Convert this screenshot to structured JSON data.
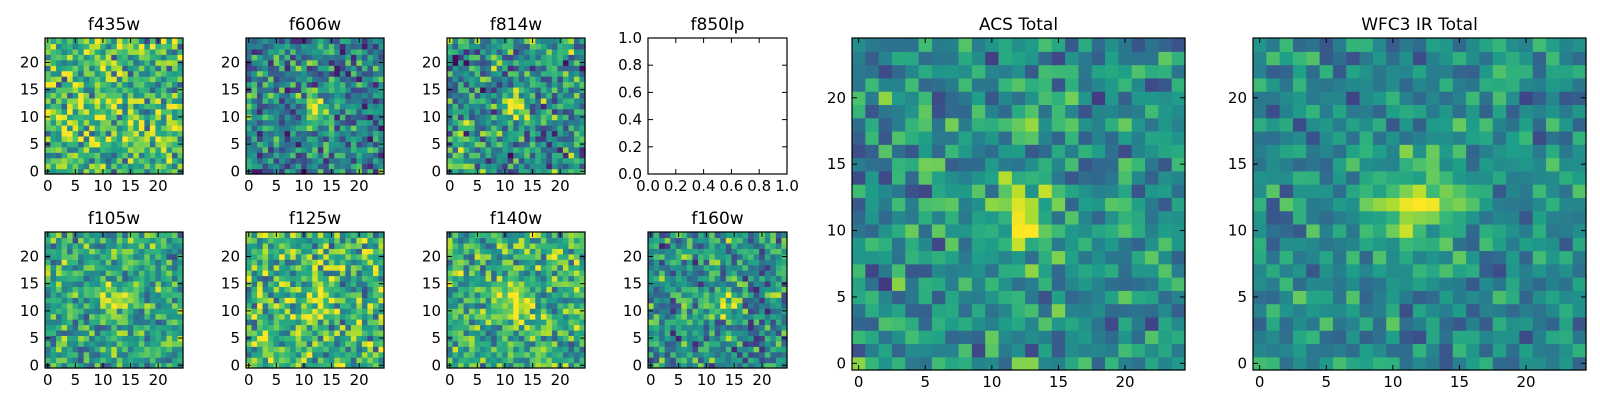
{
  "chart_data": [
    {
      "type": "heatmap",
      "title": "f435w",
      "xticks": [
        "0",
        "5",
        "10",
        "15",
        "20"
      ],
      "yticks": [
        "0",
        "5",
        "10",
        "15",
        "20"
      ],
      "xlim": [
        -0.5,
        24.5
      ],
      "ylim": [
        -0.5,
        24.5
      ],
      "colormap": "viridis",
      "source_center": [
        12,
        12
      ],
      "source_strength": 0.1,
      "source_sigma": 1.8,
      "background_level": 0.68,
      "noise_amplitude": 0.5
    },
    {
      "type": "heatmap",
      "title": "f606w",
      "xticks": [
        "0",
        "5",
        "10",
        "15",
        "20"
      ],
      "yticks": [
        "0",
        "5",
        "10",
        "15",
        "20"
      ],
      "xlim": [
        -0.5,
        24.5
      ],
      "ylim": [
        -0.5,
        24.5
      ],
      "colormap": "viridis",
      "source_center": [
        12,
        12
      ],
      "source_strength": 0.5,
      "source_sigma": 1.6,
      "background_level": 0.45,
      "noise_amplitude": 0.45
    },
    {
      "type": "heatmap",
      "title": "f814w",
      "xticks": [
        "0",
        "5",
        "10",
        "15",
        "20"
      ],
      "yticks": [
        "0",
        "5",
        "10",
        "15",
        "20"
      ],
      "xlim": [
        -0.5,
        24.5
      ],
      "ylim": [
        -0.5,
        24.5
      ],
      "colormap": "viridis",
      "source_center": [
        12,
        12
      ],
      "source_strength": 0.45,
      "source_sigma": 1.7,
      "background_level": 0.5,
      "noise_amplitude": 0.5
    },
    {
      "type": "empty",
      "title": "f850lp",
      "xticks": [
        "0.0",
        "0.2",
        "0.4",
        "0.6",
        "0.8",
        "1.0"
      ],
      "yticks": [
        "0.0",
        "0.2",
        "0.4",
        "0.6",
        "0.8",
        "1.0"
      ],
      "xlim": [
        0,
        1
      ],
      "ylim": [
        0,
        1
      ]
    },
    {
      "type": "heatmap",
      "title": "ACS Total",
      "xticks": [
        "0",
        "5",
        "10",
        "15",
        "20"
      ],
      "yticks": [
        "0",
        "5",
        "10",
        "15",
        "20"
      ],
      "xlim": [
        -0.5,
        24.5
      ],
      "ylim": [
        -0.5,
        24.5
      ],
      "colormap": "viridis",
      "source_center": [
        12,
        11.5
      ],
      "source_strength": 0.5,
      "source_sigma": 1.5,
      "background_level": 0.5,
      "noise_amplitude": 0.35
    },
    {
      "type": "heatmap",
      "title": "f105w",
      "xticks": [
        "0",
        "5",
        "10",
        "15",
        "20"
      ],
      "yticks": [
        "0",
        "5",
        "10",
        "15",
        "20"
      ],
      "xlim": [
        -0.5,
        24.5
      ],
      "ylim": [
        -0.5,
        24.5
      ],
      "colormap": "viridis",
      "source_center": [
        12,
        12
      ],
      "source_strength": 0.35,
      "source_sigma": 2.0,
      "background_level": 0.58,
      "noise_amplitude": 0.38
    },
    {
      "type": "heatmap",
      "title": "f125w",
      "xticks": [
        "0",
        "5",
        "10",
        "15",
        "20"
      ],
      "yticks": [
        "0",
        "5",
        "10",
        "15",
        "20"
      ],
      "xlim": [
        -0.5,
        24.5
      ],
      "ylim": [
        -0.5,
        24.5
      ],
      "colormap": "viridis",
      "source_center": [
        12,
        12
      ],
      "source_strength": 0.25,
      "source_sigma": 2.2,
      "background_level": 0.66,
      "noise_amplitude": 0.45
    },
    {
      "type": "heatmap",
      "title": "f140w",
      "xticks": [
        "0",
        "5",
        "10",
        "15",
        "20"
      ],
      "yticks": [
        "0",
        "5",
        "10",
        "15",
        "20"
      ],
      "xlim": [
        -0.5,
        24.5
      ],
      "ylim": [
        -0.5,
        24.5
      ],
      "colormap": "viridis",
      "source_center": [
        12,
        11
      ],
      "source_strength": 0.3,
      "source_sigma": 2.5,
      "background_level": 0.63,
      "noise_amplitude": 0.4
    },
    {
      "type": "heatmap",
      "title": "f160w",
      "xticks": [
        "0",
        "5",
        "10",
        "15",
        "20"
      ],
      "yticks": [
        "0",
        "5",
        "10",
        "15",
        "20"
      ],
      "xlim": [
        -0.5,
        24.5
      ],
      "ylim": [
        -0.5,
        24.5
      ],
      "colormap": "viridis",
      "source_center": [
        13,
        12
      ],
      "source_strength": 0.45,
      "source_sigma": 1.8,
      "background_level": 0.5,
      "noise_amplitude": 0.45
    },
    {
      "type": "heatmap",
      "title": "WFC3 IR Total",
      "xticks": [
        "0",
        "5",
        "10",
        "15",
        "20"
      ],
      "yticks": [
        "0",
        "5",
        "10",
        "15",
        "20"
      ],
      "xlim": [
        -0.5,
        24.5
      ],
      "ylim": [
        -0.5,
        24.5
      ],
      "colormap": "viridis",
      "source_center": [
        12,
        12
      ],
      "source_strength": 0.45,
      "source_sigma": 2.1,
      "background_level": 0.48,
      "noise_amplitude": 0.3
    }
  ]
}
